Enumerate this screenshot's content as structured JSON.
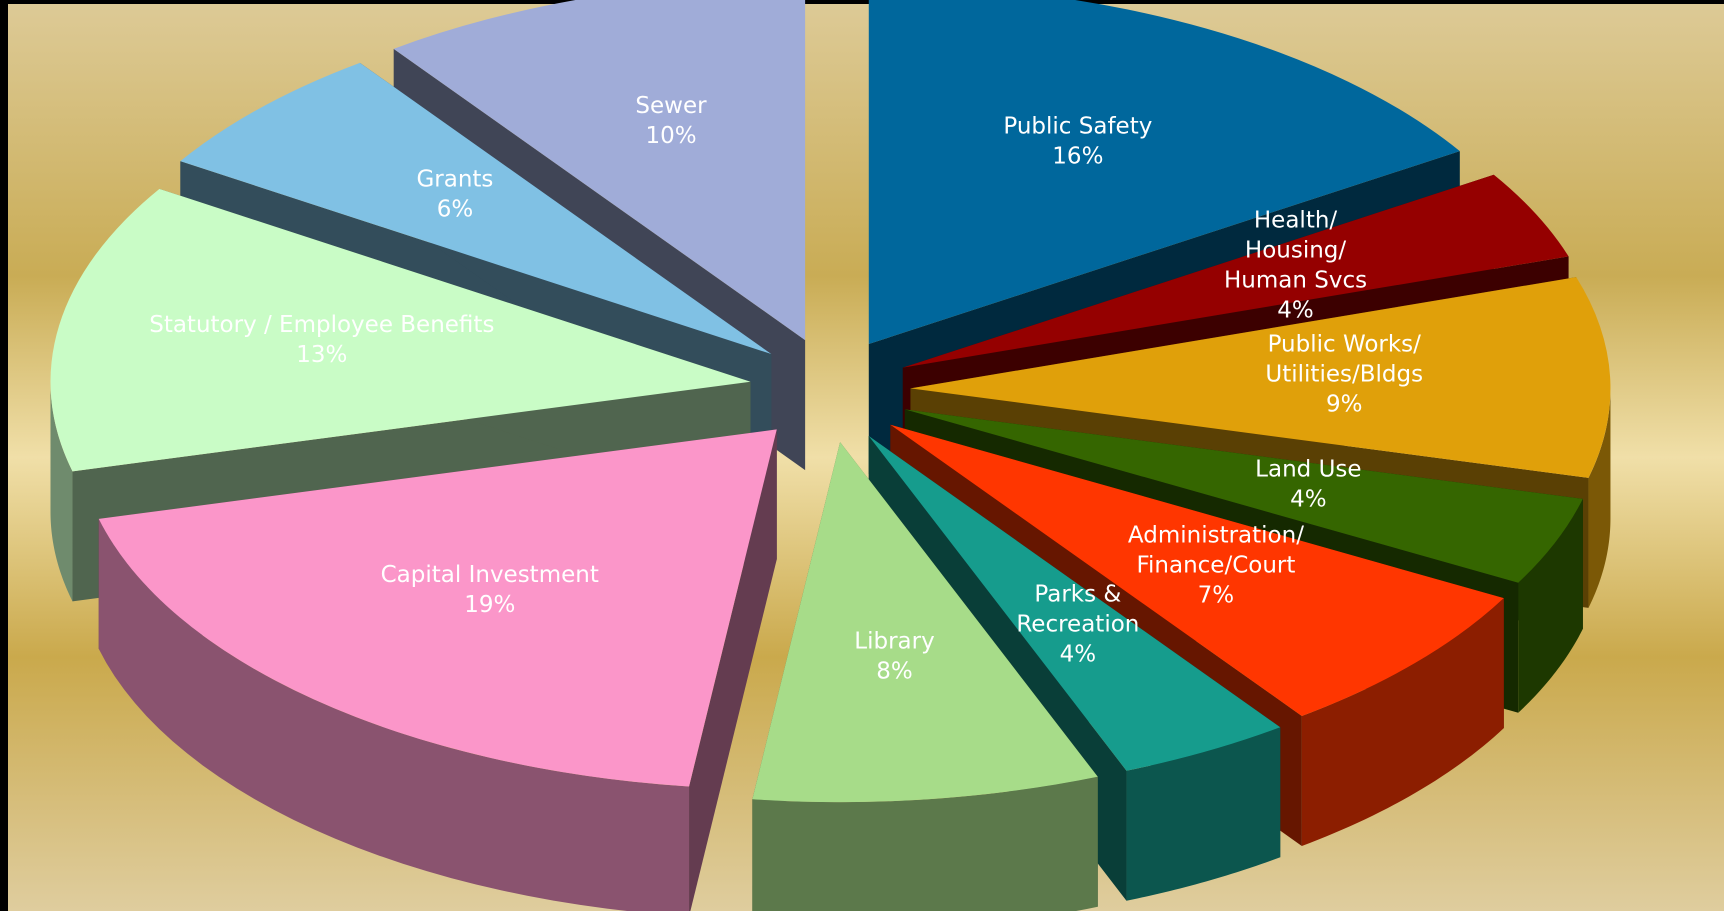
{
  "chart_data": {
    "type": "pie",
    "style": "exploded-3d",
    "title": "",
    "slices": [
      {
        "label": "Public Safety",
        "lines": [
          "Public Safety"
        ],
        "value": 16,
        "value_label": "16%",
        "color": "#00679c"
      },
      {
        "label": "Health/ Housing/ Human Svcs",
        "lines": [
          "Health/",
          "Housing/",
          "Human Svcs"
        ],
        "value": 4,
        "value_label": "4%",
        "color": "#950000"
      },
      {
        "label": "Public Works/ Utilities/Bldgs",
        "lines": [
          "Public Works/",
          "Utilities/Bldgs"
        ],
        "value": 9,
        "value_label": "9%",
        "color": "#e0a00a"
      },
      {
        "label": "Land Use",
        "lines": [
          "Land Use"
        ],
        "value": 4,
        "value_label": "4%",
        "color": "#356600"
      },
      {
        "label": "Administration/ Finance/Court",
        "lines": [
          "Administration/",
          "Finance/Court"
        ],
        "value": 7,
        "value_label": "7%",
        "color": "#ff3600"
      },
      {
        "label": "Parks & Recreation",
        "lines": [
          "Parks &",
          "Recreation"
        ],
        "value": 4,
        "value_label": "4%",
        "color": "#169c8d"
      },
      {
        "label": "Library",
        "lines": [
          "Library"
        ],
        "value": 8,
        "value_label": "8%",
        "color": "#a7dc89"
      },
      {
        "label": "Capital Investment",
        "lines": [
          "Capital Investment"
        ],
        "value": 19,
        "value_label": "19%",
        "color": "#fb96c9"
      },
      {
        "label": "Statutory / Employee Benefits",
        "lines": [
          "Statutory / Employee Benefits"
        ],
        "value": 13,
        "value_label": "13%",
        "color": "#c9fcc6"
      },
      {
        "label": "Grants",
        "lines": [
          "Grants"
        ],
        "value": 6,
        "value_label": "6%",
        "color": "#80c1e4"
      },
      {
        "label": "Sewer",
        "lines": [
          "Sewer"
        ],
        "value": 10,
        "value_label": "10%",
        "color": "#a0acd8"
      }
    ]
  }
}
